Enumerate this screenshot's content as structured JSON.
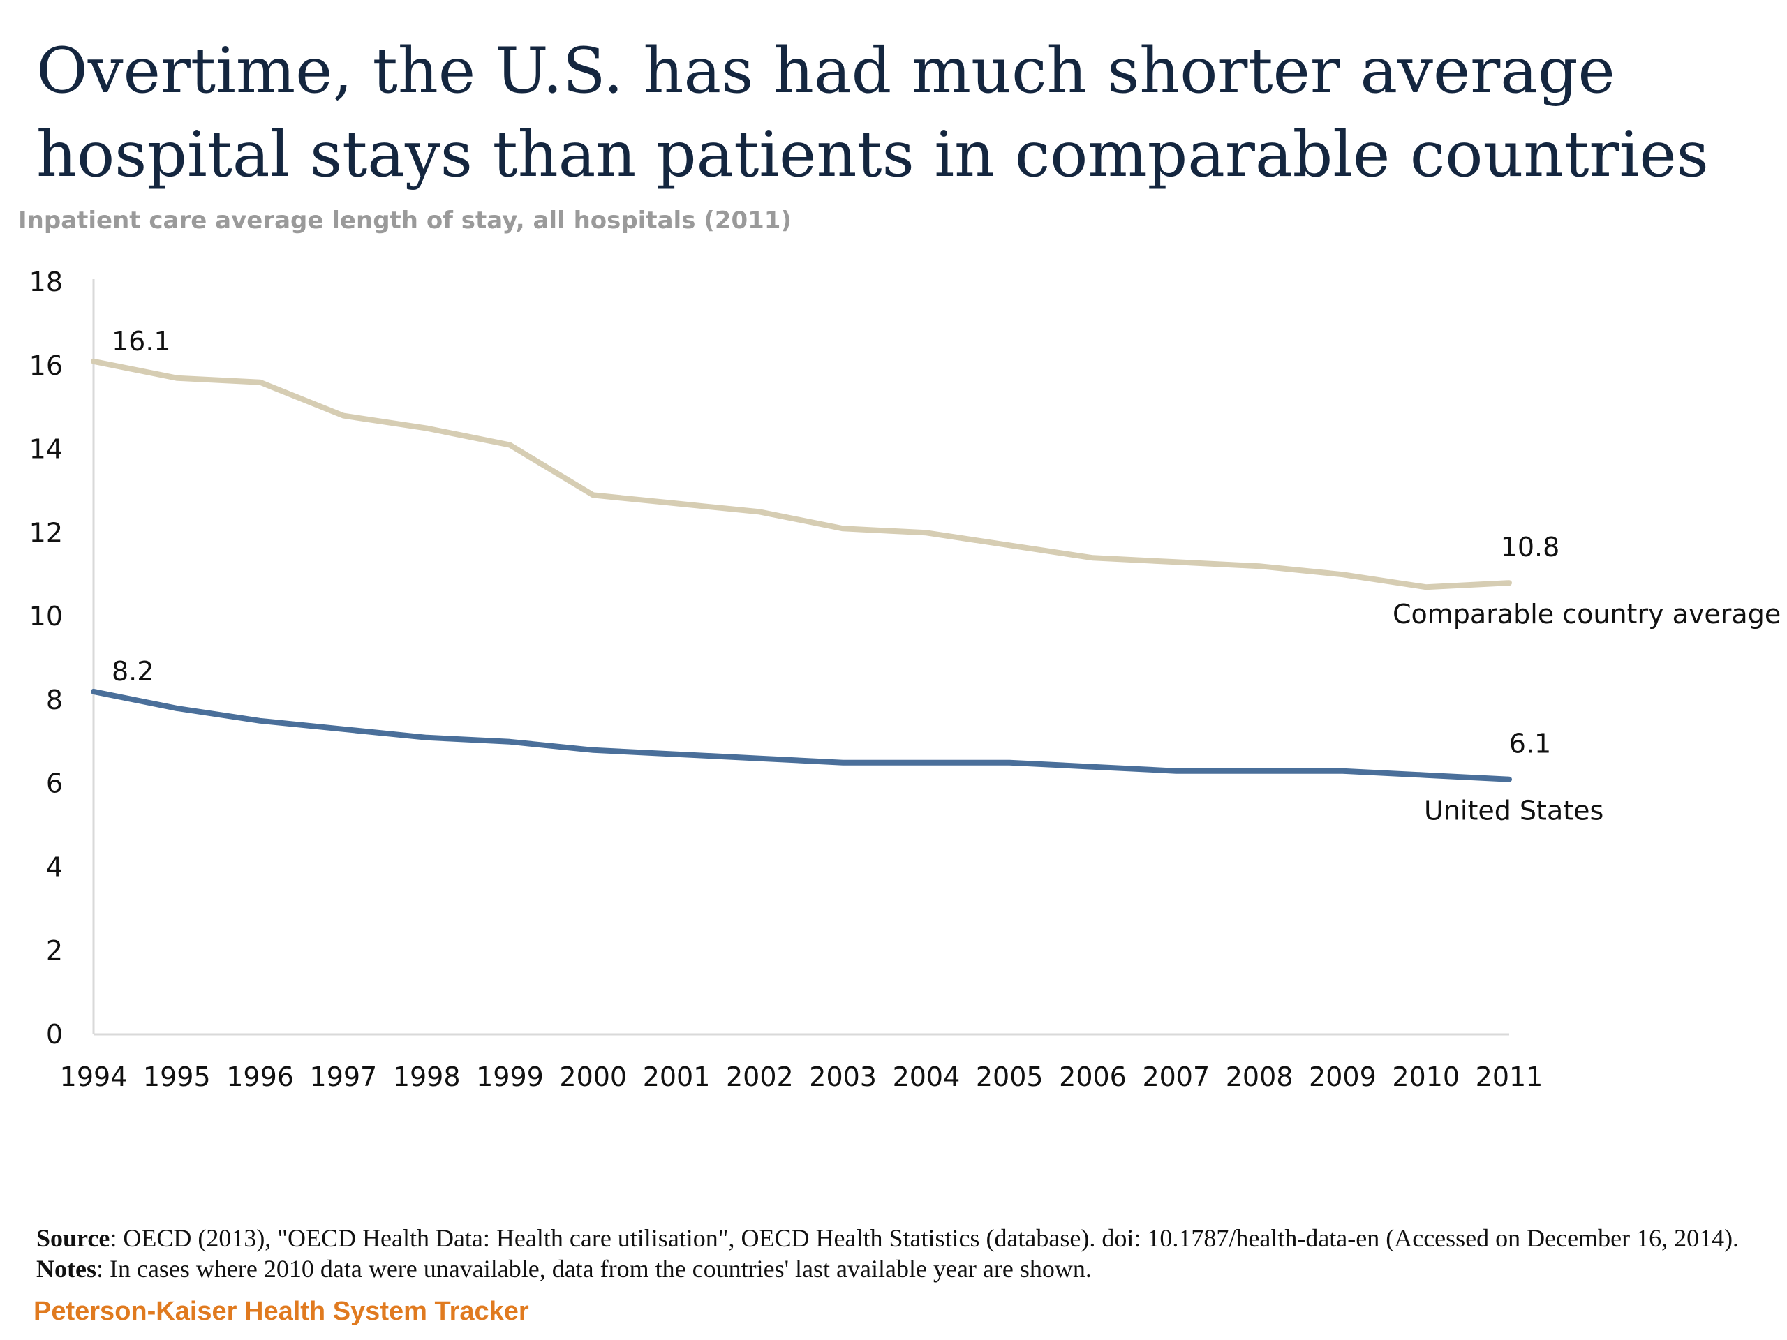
{
  "page": {
    "title": "Overtime, the U.S. has had much shorter average hospital stays than patients in comparable countries",
    "footer": {
      "source_label": "Source",
      "source_text": ": OECD (2013), \"OECD Health Data: Health care utilisation\", OECD Health Statistics (database).  doi: 10.1787/health-data-en (Accessed on December 16, 2014). ",
      "notes_label": "Notes",
      "notes_text": ": In cases where 2010 data were unavailable, data from the countries' last available year are shown."
    },
    "brand": "Peterson-Kaiser Health System Tracker"
  },
  "chart_data": {
    "type": "line",
    "title": "",
    "subtitle": "Inpatient care average length of stay, all hospitals (2011)",
    "xlabel": "",
    "ylabel": "",
    "ylim": [
      0,
      18
    ],
    "y_ticks": [
      0,
      2,
      4,
      6,
      8,
      10,
      12,
      14,
      16,
      18
    ],
    "grid": false,
    "categories": [
      "1994",
      "1995",
      "1996",
      "1997",
      "1998",
      "1999",
      "2000",
      "2001",
      "2002",
      "2003",
      "2004",
      "2005",
      "2006",
      "2007",
      "2008",
      "2009",
      "2010",
      "2011"
    ],
    "series": [
      {
        "name": "Comparable country average",
        "color": "#d6cdb3",
        "values": [
          16.1,
          15.7,
          15.6,
          14.8,
          14.5,
          14.1,
          12.9,
          12.7,
          12.5,
          12.1,
          12.0,
          11.7,
          11.4,
          11.3,
          11.2,
          11.0,
          10.7,
          10.8
        ],
        "start_label": "16.1",
        "end_label": "10.8"
      },
      {
        "name": "United States",
        "color": "#4a6f9a",
        "values": [
          8.2,
          7.8,
          7.5,
          7.3,
          7.1,
          7.0,
          6.8,
          6.7,
          6.6,
          6.5,
          6.5,
          6.5,
          6.4,
          6.3,
          6.3,
          6.3,
          6.2,
          6.1
        ],
        "start_label": "8.2",
        "end_label": "6.1"
      }
    ]
  }
}
